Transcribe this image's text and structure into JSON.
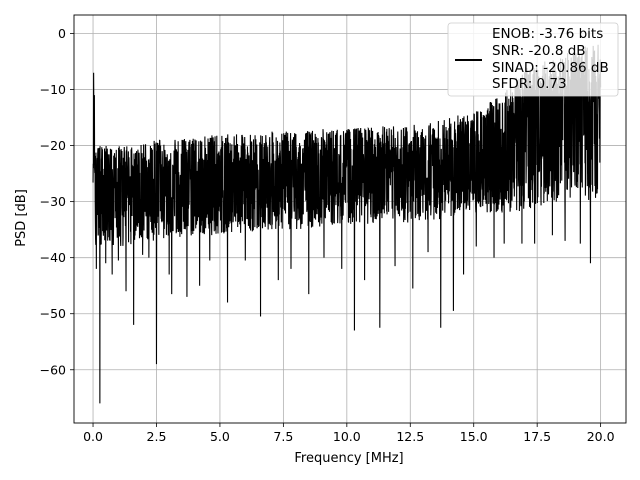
{
  "chart_data": {
    "type": "line",
    "xlabel": "Frequency [MHz]",
    "ylabel": "PSD [dB]",
    "xlim": [
      -0.75,
      21.0
    ],
    "ylim": [
      -69.5,
      3.3
    ],
    "xticks": [
      0.0,
      2.5,
      5.0,
      7.5,
      10.0,
      12.5,
      15.0,
      17.5,
      20.0
    ],
    "xtick_labels": [
      "0.0",
      "2.5",
      "5.0",
      "7.5",
      "10.0",
      "12.5",
      "15.0",
      "17.5",
      "20.0"
    ],
    "yticks": [
      0,
      -10,
      -20,
      -30,
      -40,
      -50,
      -60
    ],
    "ytick_labels": [
      "0",
      "−10",
      "−20",
      "−30",
      "−40",
      "−50",
      "−60"
    ],
    "grid": true,
    "legend_position": "top-right",
    "legend_entries": [
      "ENOB: -3.76 bits",
      "SNR: -20.8 dB",
      "SINAD: -20.86 dB",
      "SFDR: 0.73"
    ],
    "series_color": "#000000",
    "series": [
      {
        "x": [
          0.0,
          0.02,
          0.04,
          0.06,
          0.1,
          0.15,
          0.2,
          0.3,
          0.5,
          0.8,
          1.0,
          1.3,
          1.6,
          2.0,
          2.5,
          3.0,
          4.0,
          5.0,
          6.0,
          7.0,
          8.0,
          9.0,
          10.0,
          11.0,
          12.0,
          13.0,
          14.0,
          15.0,
          16.0,
          16.5,
          17.0,
          17.5,
          18.0,
          18.5,
          19.0,
          19.5,
          20.0
        ],
        "median": [
          -22,
          -12,
          -18,
          -26,
          -28,
          -28,
          -28,
          -28,
          -28,
          -28,
          -28,
          -28,
          -28,
          -28,
          -28,
          -28,
          -27.5,
          -27,
          -27,
          -26.5,
          -26.5,
          -26,
          -26,
          -25.5,
          -25.5,
          -25,
          -24.5,
          -24,
          -22,
          -20,
          -18,
          -17,
          -16,
          -15,
          -15,
          -15,
          -15
        ],
        "upper": [
          -10,
          -7,
          -15,
          -20,
          -20,
          -20,
          -20,
          -20,
          -20,
          -20,
          -20,
          -20,
          -20,
          -19.5,
          -19,
          -19,
          -18.5,
          -18,
          -18,
          -17.5,
          -17.5,
          -17,
          -17,
          -16.5,
          -16.5,
          -16,
          -15,
          -14,
          -11,
          -8,
          -6,
          -6,
          -5,
          -4,
          -3,
          -2,
          -2
        ],
        "lower": [
          -30,
          -28,
          -34,
          -38,
          -38,
          -38,
          -38,
          -38,
          -38,
          -38,
          -38,
          -38,
          -37.5,
          -37,
          -37,
          -36.5,
          -36,
          -36,
          -35.5,
          -35,
          -35,
          -34.5,
          -34,
          -34,
          -34,
          -33.5,
          -33,
          -32,
          -32,
          -32,
          -32,
          -31,
          -30,
          -30,
          -30,
          -30,
          -30
        ],
        "dips": [
          [
            0.27,
            -66.0
          ],
          [
            0.13,
            -42.0
          ],
          [
            0.5,
            -41.0
          ],
          [
            0.75,
            -43.0
          ],
          [
            1.0,
            -40.5
          ],
          [
            1.3,
            -46.0
          ],
          [
            1.6,
            -52.0
          ],
          [
            1.95,
            -39.5
          ],
          [
            2.2,
            -40.0
          ],
          [
            2.5,
            -59.0
          ],
          [
            3.0,
            -43.0
          ],
          [
            3.1,
            -46.5
          ],
          [
            3.7,
            -47.0
          ],
          [
            4.2,
            -45.0
          ],
          [
            4.6,
            -40.5
          ],
          [
            5.3,
            -48.0
          ],
          [
            6.0,
            -40.5
          ],
          [
            6.6,
            -50.5
          ],
          [
            7.3,
            -44.0
          ],
          [
            7.8,
            -42.0
          ],
          [
            8.5,
            -46.5
          ],
          [
            9.1,
            -40.0
          ],
          [
            9.8,
            -42.0
          ],
          [
            10.3,
            -53.0
          ],
          [
            10.7,
            -44.0
          ],
          [
            11.3,
            -52.5
          ],
          [
            11.9,
            -41.5
          ],
          [
            12.6,
            -45.5
          ],
          [
            13.2,
            -39.0
          ],
          [
            13.7,
            -52.5
          ],
          [
            14.2,
            -49.5
          ],
          [
            14.6,
            -43.0
          ],
          [
            15.1,
            -38.0
          ],
          [
            15.8,
            -40.0
          ],
          [
            16.2,
            -37.5
          ],
          [
            16.9,
            -37.5
          ],
          [
            17.4,
            -37.5
          ],
          [
            18.1,
            -36.0
          ],
          [
            18.6,
            -37.0
          ],
          [
            19.2,
            -37.5
          ],
          [
            19.6,
            -41.0
          ],
          [
            19.9,
            -39.0
          ]
        ],
        "peaks": [
          [
            0.02,
            -7.0
          ],
          [
            0.05,
            -11.0
          ],
          [
            19.9,
            -2.0
          ],
          [
            18.7,
            -3.5
          ],
          [
            17.8,
            -5.0
          ]
        ]
      }
    ]
  }
}
